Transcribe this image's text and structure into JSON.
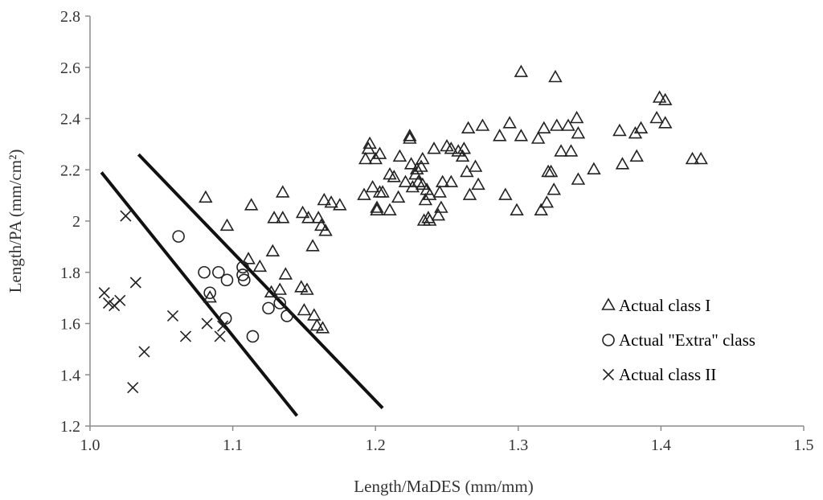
{
  "chart_data": {
    "type": "scatter",
    "title": "",
    "xlabel": "Length/MaDES (mm/mm)",
    "ylabel": "Length/PA (mm/cm²)",
    "xlim": [
      1.0,
      1.5
    ],
    "ylim": [
      1.2,
      2.8
    ],
    "xticks": [
      "1.0",
      "1.1",
      "1.2",
      "1.3",
      "1.4",
      "1.5"
    ],
    "yticks": [
      "1.2",
      "1.4",
      "1.6",
      "1.8",
      "2",
      "2.2",
      "2.4",
      "2.6",
      "2.8"
    ],
    "legend_position": "right",
    "series": [
      {
        "name": "Actual class I",
        "marker": "triangle",
        "points": [
          [
            1.081,
            2.09
          ],
          [
            1.096,
            1.98
          ],
          [
            1.084,
            1.7
          ],
          [
            1.111,
            1.85
          ],
          [
            1.113,
            2.06
          ],
          [
            1.119,
            1.82
          ],
          [
            1.128,
            1.88
          ],
          [
            1.127,
            1.72
          ],
          [
            1.129,
            2.01
          ],
          [
            1.133,
            1.73
          ],
          [
            1.135,
            2.01
          ],
          [
            1.135,
            2.11
          ],
          [
            1.137,
            1.79
          ],
          [
            1.149,
            2.03
          ],
          [
            1.148,
            1.74
          ],
          [
            1.15,
            1.65
          ],
          [
            1.152,
            1.73
          ],
          [
            1.153,
            2.01
          ],
          [
            1.156,
            1.9
          ],
          [
            1.157,
            1.63
          ],
          [
            1.159,
            1.59
          ],
          [
            1.16,
            2.01
          ],
          [
            1.162,
            1.98
          ],
          [
            1.163,
            1.58
          ],
          [
            1.164,
            2.08
          ],
          [
            1.165,
            1.96
          ],
          [
            1.169,
            2.07
          ],
          [
            1.175,
            2.06
          ],
          [
            1.192,
            2.1
          ],
          [
            1.193,
            2.24
          ],
          [
            1.195,
            2.28
          ],
          [
            1.196,
            2.3
          ],
          [
            1.198,
            2.13
          ],
          [
            1.2,
            2.24
          ],
          [
            1.201,
            2.05
          ],
          [
            1.201,
            2.04
          ],
          [
            1.203,
            2.11
          ],
          [
            1.203,
            2.26
          ],
          [
            1.205,
            2.11
          ],
          [
            1.21,
            2.04
          ],
          [
            1.21,
            2.18
          ],
          [
            1.213,
            2.17
          ],
          [
            1.216,
            2.09
          ],
          [
            1.217,
            2.25
          ],
          [
            1.221,
            2.15
          ],
          [
            1.224,
            2.33
          ],
          [
            1.224,
            2.32
          ],
          [
            1.225,
            2.22
          ],
          [
            1.226,
            2.13
          ],
          [
            1.228,
            2.18
          ],
          [
            1.229,
            2.2
          ],
          [
            1.23,
            2.15
          ],
          [
            1.232,
            2.21
          ],
          [
            1.233,
            2.14
          ],
          [
            1.233,
            2.24
          ],
          [
            1.234,
            2.0
          ],
          [
            1.235,
            2.08
          ],
          [
            1.236,
            2.12
          ],
          [
            1.237,
            2.01
          ],
          [
            1.238,
            2.1
          ],
          [
            1.238,
            2.0
          ],
          [
            1.241,
            2.28
          ],
          [
            1.244,
            2.02
          ],
          [
            1.245,
            2.11
          ],
          [
            1.246,
            2.05
          ],
          [
            1.247,
            2.15
          ],
          [
            1.25,
            2.29
          ],
          [
            1.253,
            2.28
          ],
          [
            1.253,
            2.15
          ],
          [
            1.258,
            2.27
          ],
          [
            1.261,
            2.25
          ],
          [
            1.262,
            2.28
          ],
          [
            1.264,
            2.19
          ],
          [
            1.265,
            2.36
          ],
          [
            1.266,
            2.1
          ],
          [
            1.27,
            2.21
          ],
          [
            1.272,
            2.14
          ],
          [
            1.275,
            2.37
          ],
          [
            1.287,
            2.33
          ],
          [
            1.291,
            2.1
          ],
          [
            1.294,
            2.38
          ],
          [
            1.299,
            2.04
          ],
          [
            1.302,
            2.58
          ],
          [
            1.302,
            2.33
          ],
          [
            1.314,
            2.32
          ],
          [
            1.316,
            2.04
          ],
          [
            1.318,
            2.36
          ],
          [
            1.32,
            2.07
          ],
          [
            1.321,
            2.19
          ],
          [
            1.323,
            2.19
          ],
          [
            1.325,
            2.12
          ],
          [
            1.326,
            2.56
          ],
          [
            1.327,
            2.37
          ],
          [
            1.33,
            2.27
          ],
          [
            1.335,
            2.37
          ],
          [
            1.337,
            2.27
          ],
          [
            1.341,
            2.4
          ],
          [
            1.342,
            2.34
          ],
          [
            1.342,
            2.16
          ],
          [
            1.353,
            2.2
          ],
          [
            1.371,
            2.35
          ],
          [
            1.373,
            2.22
          ],
          [
            1.382,
            2.34
          ],
          [
            1.383,
            2.25
          ],
          [
            1.386,
            2.36
          ],
          [
            1.397,
            2.4
          ],
          [
            1.399,
            2.48
          ],
          [
            1.403,
            2.47
          ],
          [
            1.403,
            2.38
          ],
          [
            1.422,
            2.24
          ],
          [
            1.428,
            2.24
          ]
        ]
      },
      {
        "name": "Actual \"Extra\" class",
        "marker": "circle",
        "points": [
          [
            1.062,
            1.94
          ],
          [
            1.08,
            1.8
          ],
          [
            1.084,
            1.72
          ],
          [
            1.09,
            1.8
          ],
          [
            1.095,
            1.62
          ],
          [
            1.096,
            1.77
          ],
          [
            1.107,
            1.82
          ],
          [
            1.107,
            1.79
          ],
          [
            1.108,
            1.77
          ],
          [
            1.114,
            1.55
          ],
          [
            1.125,
            1.66
          ],
          [
            1.133,
            1.68
          ],
          [
            1.138,
            1.63
          ]
        ]
      },
      {
        "name": "Actual class II",
        "marker": "cross",
        "points": [
          [
            1.01,
            1.72
          ],
          [
            1.013,
            1.68
          ],
          [
            1.017,
            1.67
          ],
          [
            1.021,
            1.69
          ],
          [
            1.025,
            2.02
          ],
          [
            1.03,
            1.35
          ],
          [
            1.032,
            1.76
          ],
          [
            1.038,
            1.49
          ],
          [
            1.058,
            1.63
          ],
          [
            1.067,
            1.55
          ],
          [
            1.082,
            1.6
          ],
          [
            1.091,
            1.55
          ],
          [
            1.093,
            1.59
          ]
        ]
      }
    ],
    "boundaries": [
      {
        "name": "boundary-extra-vs-class-ii",
        "x": [
          1.008,
          1.145
        ],
        "y": [
          2.19,
          1.24
        ]
      },
      {
        "name": "boundary-class-i-vs-extra",
        "x": [
          1.034,
          1.205
        ],
        "y": [
          2.26,
          1.27
        ]
      }
    ]
  }
}
